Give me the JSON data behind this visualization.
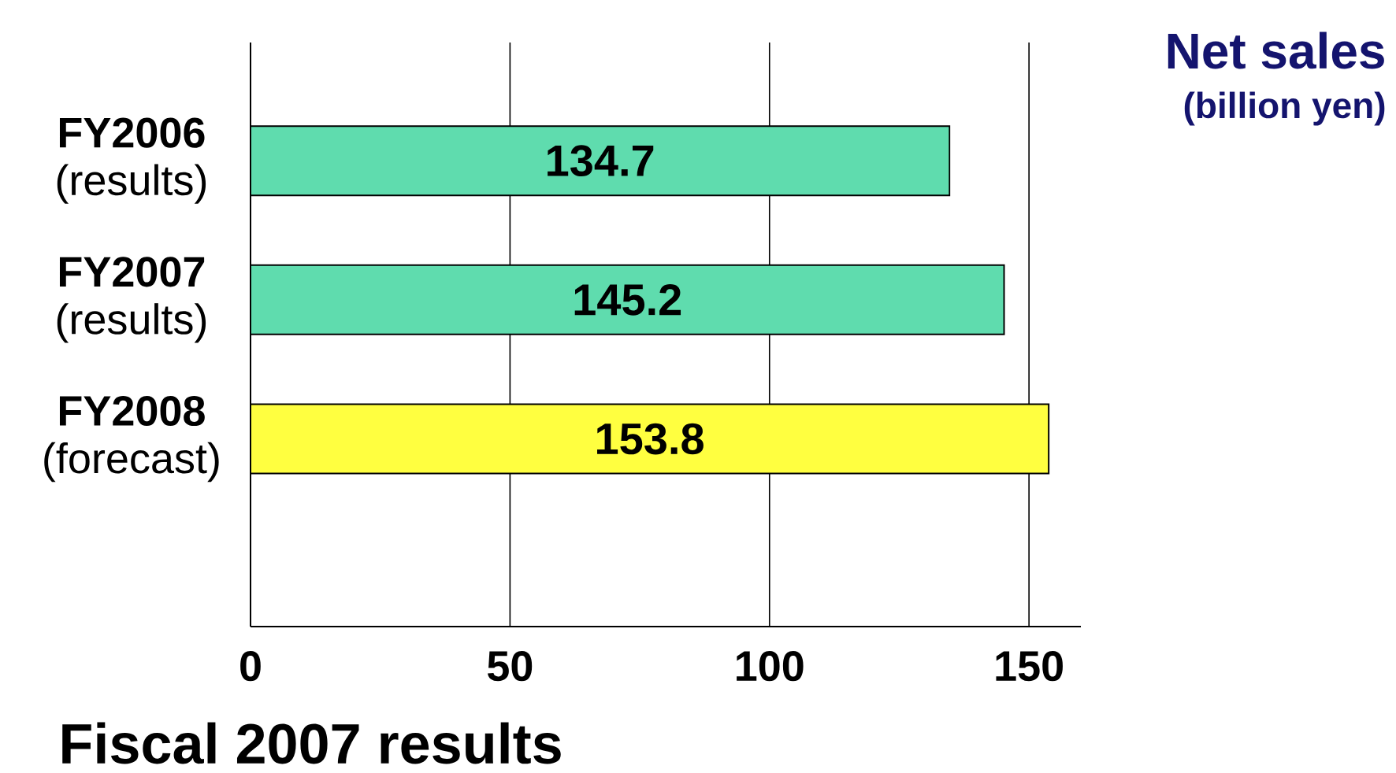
{
  "chart_data": {
    "type": "bar",
    "orientation": "horizontal",
    "title": "Net sales",
    "subtitle": "(billion yen)",
    "categories": [
      "**FY2006** (results)",
      "**FY2007** (results)",
      "**FY2008** (forecast)"
    ],
    "values": [
      134.7,
      145.2,
      153.8
    ],
    "colors": [
      "#5fdcae",
      "#5fdcae",
      "#ffff40"
    ],
    "xlim": [
      0,
      160
    ],
    "xticks": [
      0,
      50,
      100,
      150
    ],
    "grid": "x",
    "data_labels": true,
    "annotations": [
      "Fiscal 2007 results"
    ]
  }
}
